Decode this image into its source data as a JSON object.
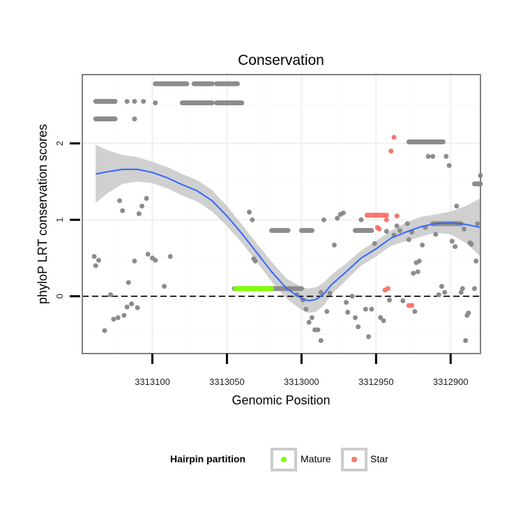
{
  "chart_data": {
    "type": "scatter",
    "title": "Conservation",
    "xlabel": "Genomic Position",
    "ylabel": "phyloP LRT conservation scores",
    "x_reversed": true,
    "xlim": [
      3313147,
      3312880
    ],
    "ylim": [
      -0.75,
      2.9
    ],
    "x_ticks": [
      3313100,
      3313050,
      3313000,
      3312950,
      3312900
    ],
    "x_tick_labels": [
      "3313100",
      "3313050",
      "3313000",
      "3312950",
      "3312900"
    ],
    "y_ticks": [
      0,
      1,
      2
    ],
    "y_tick_labels": [
      "0",
      "1",
      "2"
    ],
    "reference_line": {
      "y": 0,
      "style": "dashed"
    },
    "legend": {
      "title": "Hairpin partition",
      "position": "bottom",
      "entries": [
        {
          "label": "Mature",
          "color": "#7FFF00"
        },
        {
          "label": "Star",
          "color": "#F8766D"
        }
      ]
    },
    "colors": {
      "other": "#8C8C8C",
      "mature": "#7FFF00",
      "star": "#F8766D",
      "smooth": "#3366FF",
      "ribbon": "#C8C8C8"
    },
    "segments": [
      {
        "group": "other",
        "x1": 3313138,
        "x2": 3313125,
        "y": 2.55
      },
      {
        "group": "other",
        "x1": 3313138,
        "x2": 3313125,
        "y": 2.32
      },
      {
        "group": "other",
        "x1": 3313098,
        "x2": 3313077,
        "y": 2.78
      },
      {
        "group": "other",
        "x1": 3313072,
        "x2": 3313060,
        "y": 2.78
      },
      {
        "group": "other",
        "x1": 3313080,
        "x2": 3313060,
        "y": 2.53
      },
      {
        "group": "other",
        "x1": 3313057,
        "x2": 3313043,
        "y": 2.78
      },
      {
        "group": "other",
        "x1": 3313057,
        "x2": 3313040,
        "y": 2.53
      },
      {
        "group": "other",
        "x1": 3313045,
        "x2": 3313000,
        "y": 0.1
      },
      {
        "group": "mature",
        "x1": 3313044,
        "x2": 3313020,
        "y": 0.1
      },
      {
        "group": "other",
        "x1": 3313020,
        "x2": 3313009,
        "y": 0.86
      },
      {
        "group": "other",
        "x1": 3313000,
        "x2": 3312993,
        "y": 0.86
      },
      {
        "group": "other",
        "x1": 3312964,
        "x2": 3312953,
        "y": 0.86
      },
      {
        "group": "star",
        "x1": 3312956,
        "x2": 3312943,
        "y": 1.06
      },
      {
        "group": "other",
        "x1": 3312928,
        "x2": 3312905,
        "y": 2.02
      },
      {
        "group": "other",
        "x1": 3312912,
        "x2": 3312893,
        "y": 0.95
      },
      {
        "group": "other",
        "x1": 3312884,
        "x2": 3312880,
        "y": 1.47
      }
    ],
    "points": [
      {
        "group": "other",
        "x": 3313117,
        "y": 2.55
      },
      {
        "group": "other",
        "x": 3313112,
        "y": 2.55
      },
      {
        "group": "other",
        "x": 3313106,
        "y": 2.55
      },
      {
        "group": "other",
        "x": 3313112,
        "y": 2.32
      },
      {
        "group": "other",
        "x": 3313098,
        "y": 2.53
      },
      {
        "group": "other",
        "x": 3313080,
        "y": 2.78
      },
      {
        "group": "other",
        "x": 3313139,
        "y": 0.52
      },
      {
        "group": "other",
        "x": 3313138,
        "y": 0.4
      },
      {
        "group": "other",
        "x": 3313136,
        "y": 0.47
      },
      {
        "group": "other",
        "x": 3313132,
        "y": -0.45
      },
      {
        "group": "other",
        "x": 3313128,
        "y": 0.02
      },
      {
        "group": "other",
        "x": 3313126,
        "y": -0.3
      },
      {
        "group": "other",
        "x": 3313123,
        "y": -0.28
      },
      {
        "group": "other",
        "x": 3313122,
        "y": 1.25
      },
      {
        "group": "other",
        "x": 3313120,
        "y": 1.12
      },
      {
        "group": "other",
        "x": 3313119,
        "y": -0.25
      },
      {
        "group": "other",
        "x": 3313117,
        "y": -0.14
      },
      {
        "group": "other",
        "x": 3313116,
        "y": 0.18
      },
      {
        "group": "other",
        "x": 3313114,
        "y": -0.1
      },
      {
        "group": "other",
        "x": 3313112,
        "y": 0.46
      },
      {
        "group": "other",
        "x": 3313110,
        "y": -0.15
      },
      {
        "group": "other",
        "x": 3313109,
        "y": 1.08
      },
      {
        "group": "other",
        "x": 3313107,
        "y": 1.18
      },
      {
        "group": "other",
        "x": 3313104,
        "y": 1.28
      },
      {
        "group": "other",
        "x": 3313103,
        "y": 0.55
      },
      {
        "group": "other",
        "x": 3313100,
        "y": 0.5
      },
      {
        "group": "other",
        "x": 3313098,
        "y": 0.47
      },
      {
        "group": "other",
        "x": 3313092,
        "y": 0.13
      },
      {
        "group": "other",
        "x": 3313088,
        "y": 0.52
      },
      {
        "group": "other",
        "x": 3313035,
        "y": 1.1
      },
      {
        "group": "other",
        "x": 3313033,
        "y": 1.0
      },
      {
        "group": "other",
        "x": 3313032,
        "y": 0.49
      },
      {
        "group": "other",
        "x": 3313031,
        "y": 0.46
      },
      {
        "group": "other",
        "x": 3313003,
        "y": 0.02
      },
      {
        "group": "other",
        "x": 3312999,
        "y": -0.05
      },
      {
        "group": "other",
        "x": 3312997,
        "y": -0.17
      },
      {
        "group": "other",
        "x": 3312995,
        "y": -0.34
      },
      {
        "group": "other",
        "x": 3312993,
        "y": -0.28
      },
      {
        "group": "other",
        "x": 3312991,
        "y": -0.44
      },
      {
        "group": "other",
        "x": 3312989,
        "y": -0.44
      },
      {
        "group": "other",
        "x": 3312987,
        "y": -0.58
      },
      {
        "group": "other",
        "x": 3312987,
        "y": 0.05
      },
      {
        "group": "other",
        "x": 3312985,
        "y": 1.0
      },
      {
        "group": "other",
        "x": 3312983,
        "y": -0.2
      },
      {
        "group": "other",
        "x": 3312981,
        "y": 0.04
      },
      {
        "group": "other",
        "x": 3312978,
        "y": 0.67
      },
      {
        "group": "other",
        "x": 3312976,
        "y": 1.02
      },
      {
        "group": "other",
        "x": 3312974,
        "y": 1.07
      },
      {
        "group": "other",
        "x": 3312972,
        "y": 1.09
      },
      {
        "group": "other",
        "x": 3312970,
        "y": -0.08
      },
      {
        "group": "other",
        "x": 3312969,
        "y": -0.21
      },
      {
        "group": "other",
        "x": 3312966,
        "y": 0.0
      },
      {
        "group": "other",
        "x": 3312964,
        "y": -0.28
      },
      {
        "group": "other",
        "x": 3312962,
        "y": -0.4
      },
      {
        "group": "other",
        "x": 3312960,
        "y": 1.0
      },
      {
        "group": "other",
        "x": 3312957,
        "y": -0.17
      },
      {
        "group": "other",
        "x": 3312955,
        "y": -0.53
      },
      {
        "group": "other",
        "x": 3312953,
        "y": -0.17
      },
      {
        "group": "other",
        "x": 3312951,
        "y": 0.69
      },
      {
        "group": "other",
        "x": 3312947,
        "y": -0.28
      },
      {
        "group": "other",
        "x": 3312945,
        "y": -0.32
      },
      {
        "group": "other",
        "x": 3312943,
        "y": 0.85
      },
      {
        "group": "other",
        "x": 3312941,
        "y": -0.05
      },
      {
        "group": "other",
        "x": 3312938,
        "y": 0.8
      },
      {
        "group": "other",
        "x": 3312936,
        "y": 0.92
      },
      {
        "group": "other",
        "x": 3312934,
        "y": 0.86
      },
      {
        "group": "other",
        "x": 3312932,
        "y": -0.06
      },
      {
        "group": "other",
        "x": 3312929,
        "y": 0.95
      },
      {
        "group": "other",
        "x": 3312928,
        "y": 0.74
      },
      {
        "group": "other",
        "x": 3312926,
        "y": 0.84
      },
      {
        "group": "other",
        "x": 3312925,
        "y": 0.3
      },
      {
        "group": "other",
        "x": 3312924,
        "y": -0.2
      },
      {
        "group": "other",
        "x": 3312923,
        "y": 0.44
      },
      {
        "group": "other",
        "x": 3312922,
        "y": 0.32
      },
      {
        "group": "other",
        "x": 3312921,
        "y": 0.46
      },
      {
        "group": "other",
        "x": 3312919,
        "y": 0.67
      },
      {
        "group": "other",
        "x": 3312917,
        "y": 0.9
      },
      {
        "group": "other",
        "x": 3312915,
        "y": 1.83
      },
      {
        "group": "other",
        "x": 3312912,
        "y": 1.83
      },
      {
        "group": "other",
        "x": 3312910,
        "y": 0.81
      },
      {
        "group": "other",
        "x": 3312908,
        "y": 0.02
      },
      {
        "group": "other",
        "x": 3312906,
        "y": 0.13
      },
      {
        "group": "other",
        "x": 3312904,
        "y": 0.05
      },
      {
        "group": "other",
        "x": 3312903,
        "y": 1.83
      },
      {
        "group": "other",
        "x": 3312901,
        "y": 1.71
      },
      {
        "group": "other",
        "x": 3312899,
        "y": 0.72
      },
      {
        "group": "other",
        "x": 3312897,
        "y": 0.65
      },
      {
        "group": "other",
        "x": 3312896,
        "y": 1.18
      },
      {
        "group": "other",
        "x": 3312893,
        "y": 0.05
      },
      {
        "group": "other",
        "x": 3312892,
        "y": 0.1
      },
      {
        "group": "other",
        "x": 3312891,
        "y": 0.88
      },
      {
        "group": "other",
        "x": 3312890,
        "y": -0.58
      },
      {
        "group": "other",
        "x": 3312889,
        "y": -0.25
      },
      {
        "group": "other",
        "x": 3312888,
        "y": -0.22
      },
      {
        "group": "other",
        "x": 3312887,
        "y": 0.7
      },
      {
        "group": "other",
        "x": 3312886,
        "y": 0.68
      },
      {
        "group": "other",
        "x": 3312884,
        "y": 0.1
      },
      {
        "group": "other",
        "x": 3312883,
        "y": 0.46
      },
      {
        "group": "other",
        "x": 3312882,
        "y": 0.95
      },
      {
        "group": "other",
        "x": 3312880,
        "y": 1.58
      },
      {
        "group": "star",
        "x": 3312949,
        "y": 0.9
      },
      {
        "group": "star",
        "x": 3312948,
        "y": 0.88
      },
      {
        "group": "star",
        "x": 3312943,
        "y": 1.0
      },
      {
        "group": "star",
        "x": 3312944,
        "y": 0.08
      },
      {
        "group": "star",
        "x": 3312942,
        "y": 0.1
      },
      {
        "group": "star",
        "x": 3312940,
        "y": 1.9
      },
      {
        "group": "star",
        "x": 3312938,
        "y": 2.08
      },
      {
        "group": "star",
        "x": 3312936,
        "y": 1.05
      },
      {
        "group": "star",
        "x": 3312928,
        "y": -0.12
      },
      {
        "group": "star",
        "x": 3312926,
        "y": -0.12
      }
    ],
    "smooth_line": {
      "x": [
        3313138,
        3313130,
        3313120,
        3313110,
        3313100,
        3313090,
        3313080,
        3313070,
        3313060,
        3313050,
        3313040,
        3313030,
        3313020,
        3313010,
        3313000,
        3312995,
        3312990,
        3312985,
        3312980,
        3312970,
        3312960,
        3312950,
        3312940,
        3312930,
        3312920,
        3312910,
        3312900,
        3312890,
        3312880
      ],
      "y": [
        1.6,
        1.63,
        1.66,
        1.66,
        1.62,
        1.55,
        1.46,
        1.38,
        1.25,
        1.05,
        0.82,
        0.57,
        0.32,
        0.1,
        -0.03,
        -0.06,
        -0.04,
        0.03,
        0.15,
        0.32,
        0.5,
        0.62,
        0.76,
        0.84,
        0.91,
        0.95,
        0.96,
        0.94,
        0.9
      ]
    },
    "confidence_band": {
      "upper": [
        1.98,
        1.91,
        1.85,
        1.82,
        1.76,
        1.69,
        1.6,
        1.52,
        1.39,
        1.18,
        0.94,
        0.69,
        0.45,
        0.23,
        0.12,
        0.1,
        0.12,
        0.18,
        0.28,
        0.43,
        0.6,
        0.72,
        0.86,
        0.96,
        1.04,
        1.07,
        1.11,
        1.18,
        1.28
      ],
      "lower": [
        1.22,
        1.35,
        1.47,
        1.5,
        1.48,
        1.41,
        1.32,
        1.24,
        1.11,
        0.92,
        0.7,
        0.45,
        0.19,
        -0.03,
        -0.18,
        -0.22,
        -0.2,
        -0.12,
        0.02,
        0.21,
        0.4,
        0.52,
        0.66,
        0.72,
        0.78,
        0.83,
        0.81,
        0.7,
        0.52
      ]
    }
  }
}
